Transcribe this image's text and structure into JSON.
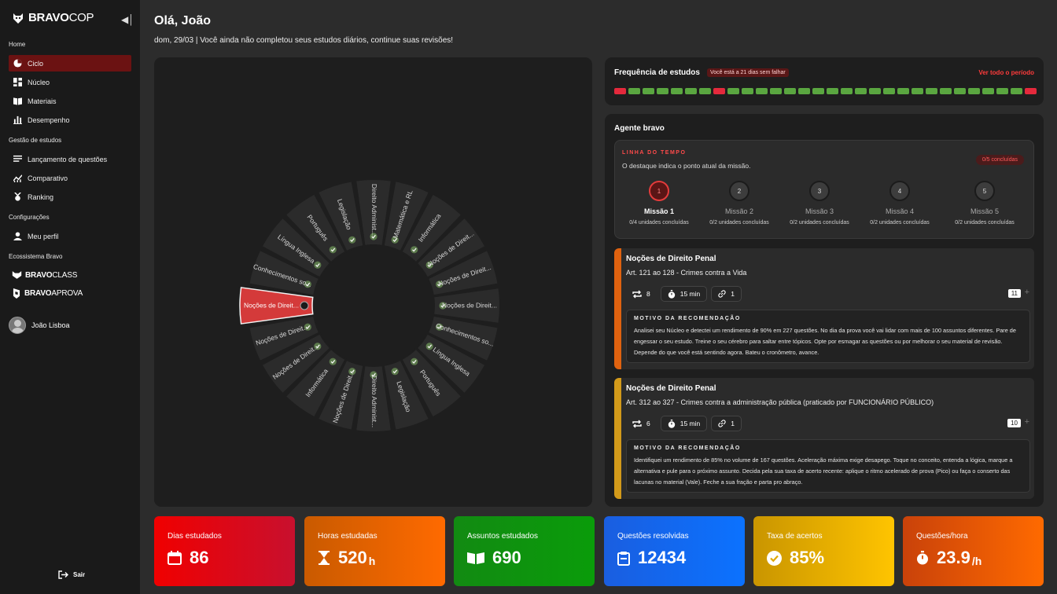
{
  "brand": {
    "name_bold": "BRAVO",
    "name_light": "COP"
  },
  "sidebar": {
    "sections": {
      "home": "Home",
      "gestao": "Gestão de estudos",
      "config": "Configurações",
      "eco": "Ecossistema Bravo"
    },
    "items": [
      {
        "label": "Ciclo",
        "icon": "pie-chart-icon"
      },
      {
        "label": "Núcleo",
        "icon": "grid-icon"
      },
      {
        "label": "Materiais",
        "icon": "book-icon"
      },
      {
        "label": "Desempenho",
        "icon": "bar-chart-icon"
      },
      {
        "label": "Lançamento de questões",
        "icon": "list-icon"
      },
      {
        "label": "Comparativo",
        "icon": "trend-icon"
      },
      {
        "label": "Ranking",
        "icon": "medal-icon"
      },
      {
        "label": "Meu perfil",
        "icon": "user-icon"
      }
    ],
    "ecosystem": [
      {
        "bold": "BRAVO",
        "light": "CLASS"
      },
      {
        "bold": "BRAVO",
        "light": "APROVA"
      }
    ],
    "user_name": "João Lisboa",
    "logout_label": "Sair"
  },
  "header": {
    "greeting": "Olá, João",
    "subtitle": "dom, 29/03 | Você ainda não completou seus estudos diários, continue suas revisões!"
  },
  "wheel": {
    "segments": [
      "Noções de Direit...",
      "Conhecimentos so...",
      "Língua Inglesa",
      "Português",
      "Legislação",
      "Direito Administ...",
      "Matemática e RL",
      "Informática",
      "Noções de Direit...",
      "Noções de Direit...",
      "Noções de Direit...",
      "Conhecimentos so...",
      "Língua Inglesa",
      "Português",
      "Legislação",
      "Direito Administ...",
      "Noções de Direit...",
      "Informática",
      "Noções de Direit...",
      "Noções de Direit..."
    ],
    "selected_index": 0
  },
  "frequency": {
    "title": "Frequência de estudos",
    "badge": "Você está a 21 dias sem falhar",
    "link": "Ver todo o período",
    "days": [
      "miss",
      "ok",
      "ok",
      "ok",
      "ok",
      "ok",
      "ok",
      "miss",
      "ok",
      "ok",
      "ok",
      "ok",
      "ok",
      "ok",
      "ok",
      "ok",
      "ok",
      "ok",
      "ok",
      "ok",
      "ok",
      "ok",
      "ok",
      "ok",
      "ok",
      "ok",
      "ok",
      "ok",
      "ok",
      "miss"
    ]
  },
  "agent": {
    "title": "Agente bravo",
    "timeline": {
      "title": "LINHA DO TEMPO",
      "subtitle": "O destaque indica o ponto atual da missão.",
      "badge": "0/5 concluídas",
      "missions": [
        {
          "num": "1",
          "name": "Missão 1",
          "units": "0/4 unidades concluídas"
        },
        {
          "num": "2",
          "name": "Missão 2",
          "units": "0/2 unidades concluídas"
        },
        {
          "num": "3",
          "name": "Missão 3",
          "units": "0/2 unidades concluídas"
        },
        {
          "num": "4",
          "name": "Missão 4",
          "units": "0/2 unidades concluídas"
        },
        {
          "num": "5",
          "name": "Missão 5",
          "units": "0/2 unidades concluídas"
        }
      ]
    },
    "recommendations": [
      {
        "title": "Noções de Direito Penal",
        "subtitle": "Art. 121 ao 128 - Crimes contra a Vida",
        "repeat": "8",
        "time": "15 min",
        "links": "1",
        "count": "11",
        "motivo_label": "MOTIVO DA RECOMENDAÇÃO",
        "motivo": "Analisei seu Núcleo e detectei um rendimento de 90% em 227 questões. No dia da prova você vai lidar com mais de 100 assuntos diferentes. Pare de engessar o seu estudo. Treine o seu cérebro para saltar entre tópicos. Opte por esmagar as questões ou por melhorar o seu material de revisão. Depende do que você está sentindo agora. Bateu o cronômetro, avance.",
        "color": "#e0620f"
      },
      {
        "title": "Noções de Direito Penal",
        "subtitle": "Art. 312 ao 327 - Crimes contra a administração pública (praticado por FUNCIONÁRIO PÚBLICO)",
        "repeat": "6",
        "time": "15 min",
        "links": "1",
        "count": "10",
        "motivo_label": "MOTIVO DA RECOMENDAÇÃO",
        "motivo": "Identifiquei um rendimento de 85% no volume de 167 questões. Aceleração máxima exige desapego. Toque no conceito, entenda a lógica, marque a alternativa e pule para o próximo assunto. Decida pela sua taxa de acerto recente: aplique o ritmo acelerado de prova (Pico) ou faça o conserto das lacunas no material (Vale). Feche a sua fração e parta pro abraço.",
        "color": "#d39a1a"
      }
    ]
  },
  "stats": [
    {
      "label": "Dias estudados",
      "value": "86",
      "unit": "",
      "icon": "calendar-icon",
      "from": "#f00000",
      "to": "#c8102e"
    },
    {
      "label": "Horas estudadas",
      "value": "520",
      "unit": "h",
      "icon": "hourglass-icon",
      "from": "#c95a00",
      "to": "#ff6a00"
    },
    {
      "label": "Assuntos estudados",
      "value": "690",
      "unit": "",
      "icon": "book-open-icon",
      "from": "#128a12",
      "to": "#0a9c0a"
    },
    {
      "label": "Questões resolvidas",
      "value": "12434",
      "unit": "",
      "icon": "clipboard-icon",
      "from": "#1a5ee0",
      "to": "#0b72ff"
    },
    {
      "label": "Taxa de acertos",
      "value": "85%",
      "unit": "",
      "icon": "check-circle-icon",
      "from": "#c99500",
      "to": "#ffc400"
    },
    {
      "label": "Questões/hora",
      "value": "23.9",
      "unit": "/h",
      "icon": "stopwatch-icon",
      "from": "#c9420a",
      "to": "#ff6a00"
    }
  ]
}
